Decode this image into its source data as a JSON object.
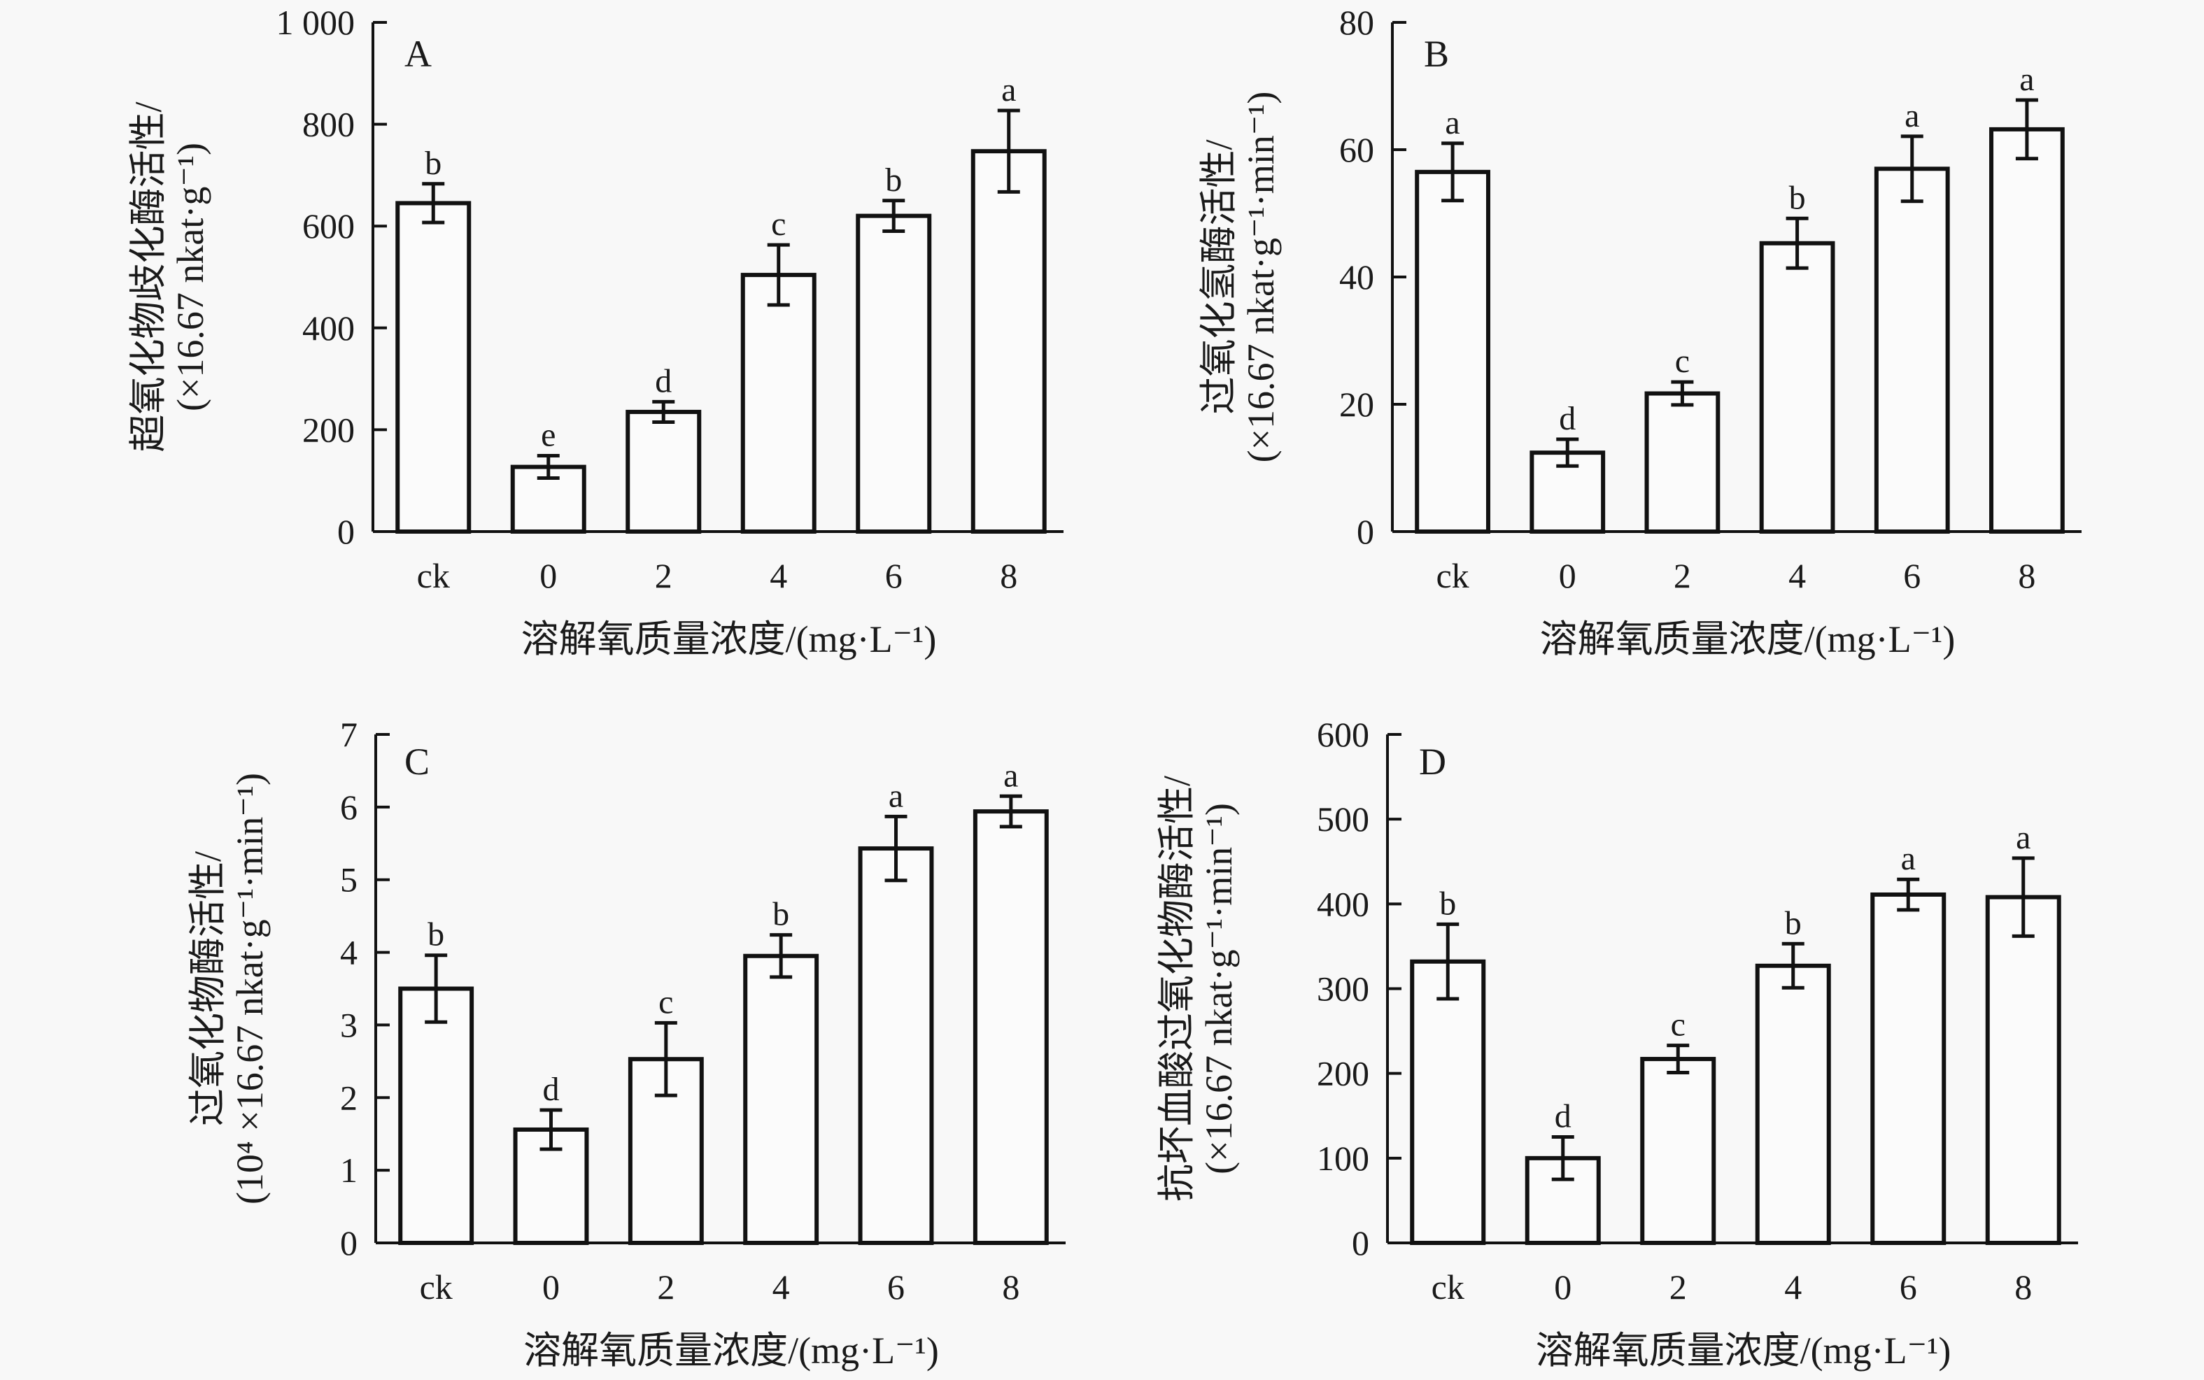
{
  "chart_data": [
    {
      "type": "bar",
      "panel": "A",
      "categories": [
        "ck",
        "0",
        "2",
        "4",
        "6",
        "8"
      ],
      "values": [
        645,
        127,
        235,
        504,
        620,
        747
      ],
      "errors": [
        38,
        22,
        20,
        59,
        30,
        80
      ],
      "significance": [
        "b",
        "e",
        "d",
        "c",
        "b",
        "a"
      ],
      "ylim": [
        0,
        1000
      ],
      "yticks": [
        0,
        200,
        400,
        600,
        800,
        1000
      ],
      "ytick_labels": [
        "0",
        "200",
        "400",
        "600",
        "800",
        "1 000"
      ],
      "ylabel_line1": "超氧化物歧化酶活性/",
      "ylabel_line2": "(×16.67 nkat·g⁻¹)",
      "xlabel": "溶解氧质量浓度/(mg·L⁻¹)"
    },
    {
      "type": "bar",
      "panel": "B",
      "categories": [
        "ck",
        "0",
        "2",
        "4",
        "6",
        "8"
      ],
      "values": [
        56.5,
        12.4,
        21.7,
        45.3,
        57.0,
        63.2
      ],
      "errors": [
        4.5,
        2.1,
        1.8,
        3.9,
        5.1,
        4.6
      ],
      "significance": [
        "a",
        "d",
        "c",
        "b",
        "a",
        "a"
      ],
      "ylim": [
        0,
        80
      ],
      "yticks": [
        0,
        20,
        40,
        60,
        80
      ],
      "ytick_labels": [
        "0",
        "20",
        "40",
        "60",
        "80"
      ],
      "ylabel_line1": "过氧化氢酶活性/",
      "ylabel_line2": "(×16.67 nkat·g⁻¹·min⁻¹)",
      "xlabel": "溶解氧质量浓度/(mg·L⁻¹)"
    },
    {
      "type": "bar",
      "panel": "C",
      "categories": [
        "ck",
        "0",
        "2",
        "4",
        "6",
        "8"
      ],
      "values": [
        3.5,
        1.56,
        2.53,
        3.95,
        5.43,
        5.94
      ],
      "errors": [
        0.46,
        0.27,
        0.5,
        0.29,
        0.44,
        0.21
      ],
      "significance": [
        "b",
        "d",
        "c",
        "b",
        "a",
        "a"
      ],
      "ylim": [
        0,
        7
      ],
      "yticks": [
        0,
        1,
        2,
        3,
        4,
        5,
        6,
        7
      ],
      "ytick_labels": [
        "0",
        "1",
        "2",
        "3",
        "4",
        "5",
        "6",
        "7"
      ],
      "ylabel_line1": "过氧化物酶活性/",
      "ylabel_line2": "(10⁴ ×16.67 nkat·g⁻¹·min⁻¹)",
      "xlabel": "溶解氧质量浓度/(mg·L⁻¹)"
    },
    {
      "type": "bar",
      "panel": "D",
      "categories": [
        "ck",
        "0",
        "2",
        "4",
        "6",
        "8"
      ],
      "values": [
        332,
        100,
        217,
        327,
        411,
        408
      ],
      "errors": [
        44,
        25,
        16,
        26,
        18,
        46
      ],
      "significance": [
        "b",
        "d",
        "c",
        "b",
        "a",
        "a"
      ],
      "ylim": [
        0,
        600
      ],
      "yticks": [
        0,
        100,
        200,
        300,
        400,
        500,
        600
      ],
      "ytick_labels": [
        "0",
        "100",
        "200",
        "300",
        "400",
        "500",
        "600"
      ],
      "ylabel_line1": "抗坏血酸过氧化物酶活性/",
      "ylabel_line2": "(×16.67 nkat·g⁻¹·min⁻¹)",
      "xlabel": "溶解氧质量浓度/(mg·L⁻¹)"
    }
  ]
}
